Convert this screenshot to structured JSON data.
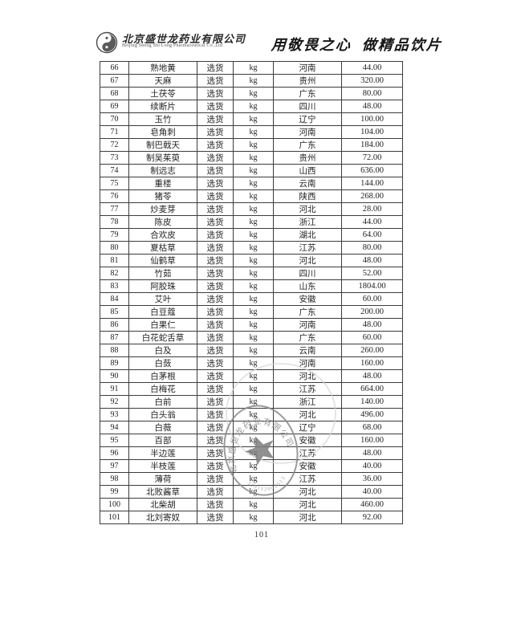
{
  "header": {
    "company_name_cn": "北京盛世龙药业有限公司",
    "company_name_en": "Beijing Sheng Shi Long Pharmaceutical Co.,Ltd",
    "slogan": "用敬畏之心  做精品饮片"
  },
  "footer": {
    "page_number": "101"
  },
  "stamp": {
    "company_text": "北京盛世龙药业有限公司",
    "number": "110112002513"
  },
  "table": {
    "rows": [
      {
        "no": "66",
        "name": "熟地黄",
        "grade": "选货",
        "unit": "kg",
        "origin": "河南",
        "price": "44.00"
      },
      {
        "no": "67",
        "name": "天麻",
        "grade": "选货",
        "unit": "kg",
        "origin": "贵州",
        "price": "320.00"
      },
      {
        "no": "68",
        "name": "土茯苓",
        "grade": "选货",
        "unit": "kg",
        "origin": "广东",
        "price": "80.00"
      },
      {
        "no": "69",
        "name": "续断片",
        "grade": "选货",
        "unit": "kg",
        "origin": "四川",
        "price": "48.00"
      },
      {
        "no": "70",
        "name": "玉竹",
        "grade": "选货",
        "unit": "kg",
        "origin": "辽宁",
        "price": "100.00"
      },
      {
        "no": "71",
        "name": "皂角刺",
        "grade": "选货",
        "unit": "kg",
        "origin": "河南",
        "price": "104.00"
      },
      {
        "no": "72",
        "name": "制巴戟天",
        "grade": "选货",
        "unit": "kg",
        "origin": "广东",
        "price": "184.00"
      },
      {
        "no": "73",
        "name": "制吴茱萸",
        "grade": "选货",
        "unit": "kg",
        "origin": "贵州",
        "price": "72.00"
      },
      {
        "no": "74",
        "name": "制远志",
        "grade": "选货",
        "unit": "kg",
        "origin": "山西",
        "price": "636.00"
      },
      {
        "no": "75",
        "name": "重楼",
        "grade": "选货",
        "unit": "kg",
        "origin": "云南",
        "price": "144.00"
      },
      {
        "no": "76",
        "name": "猪苓",
        "grade": "选货",
        "unit": "kg",
        "origin": "陕西",
        "price": "268.00"
      },
      {
        "no": "77",
        "name": "炒麦芽",
        "grade": "选货",
        "unit": "kg",
        "origin": "河北",
        "price": "28.00"
      },
      {
        "no": "78",
        "name": "陈皮",
        "grade": "选货",
        "unit": "kg",
        "origin": "浙江",
        "price": "44.00"
      },
      {
        "no": "79",
        "name": "合欢皮",
        "grade": "选货",
        "unit": "kg",
        "origin": "湖北",
        "price": "64.00"
      },
      {
        "no": "80",
        "name": "夏枯草",
        "grade": "选货",
        "unit": "kg",
        "origin": "江苏",
        "price": "80.00"
      },
      {
        "no": "81",
        "name": "仙鹤草",
        "grade": "选货",
        "unit": "kg",
        "origin": "河北",
        "price": "48.00"
      },
      {
        "no": "82",
        "name": "竹茹",
        "grade": "选货",
        "unit": "kg",
        "origin": "四川",
        "price": "52.00"
      },
      {
        "no": "83",
        "name": "阿胶珠",
        "grade": "选货",
        "unit": "kg",
        "origin": "山东",
        "price": "1804.00"
      },
      {
        "no": "84",
        "name": "艾叶",
        "grade": "选货",
        "unit": "kg",
        "origin": "安徽",
        "price": "60.00"
      },
      {
        "no": "85",
        "name": "白豆蔻",
        "grade": "选货",
        "unit": "kg",
        "origin": "广东",
        "price": "200.00"
      },
      {
        "no": "86",
        "name": "白果仁",
        "grade": "选货",
        "unit": "kg",
        "origin": "河南",
        "price": "48.00"
      },
      {
        "no": "87",
        "name": "白花蛇舌草",
        "grade": "选货",
        "unit": "kg",
        "origin": "广东",
        "price": "60.00"
      },
      {
        "no": "88",
        "name": "白及",
        "grade": "选货",
        "unit": "kg",
        "origin": "云南",
        "price": "260.00"
      },
      {
        "no": "89",
        "name": "白蔹",
        "grade": "选货",
        "unit": "kg",
        "origin": "河南",
        "price": "160.00"
      },
      {
        "no": "90",
        "name": "白茅根",
        "grade": "选货",
        "unit": "kg",
        "origin": "河北",
        "price": "48.00"
      },
      {
        "no": "91",
        "name": "白梅花",
        "grade": "选货",
        "unit": "kg",
        "origin": "江苏",
        "price": "664.00"
      },
      {
        "no": "92",
        "name": "白前",
        "grade": "选货",
        "unit": "kg",
        "origin": "浙江",
        "price": "140.00"
      },
      {
        "no": "93",
        "name": "白头翁",
        "grade": "选货",
        "unit": "kg",
        "origin": "河北",
        "price": "496.00"
      },
      {
        "no": "94",
        "name": "白薇",
        "grade": "选货",
        "unit": "kg",
        "origin": "辽宁",
        "price": "68.00"
      },
      {
        "no": "95",
        "name": "百部",
        "grade": "选货",
        "unit": "kg",
        "origin": "安徽",
        "price": "160.00"
      },
      {
        "no": "96",
        "name": "半边莲",
        "grade": "选货",
        "unit": "kg",
        "origin": "江苏",
        "price": "48.00"
      },
      {
        "no": "97",
        "name": "半枝莲",
        "grade": "选货",
        "unit": "kg",
        "origin": "安徽",
        "price": "40.00"
      },
      {
        "no": "98",
        "name": "薄荷",
        "grade": "选货",
        "unit": "kg",
        "origin": "江苏",
        "price": "36.00"
      },
      {
        "no": "99",
        "name": "北败酱草",
        "grade": "选货",
        "unit": "kg",
        "origin": "河北",
        "price": "40.00"
      },
      {
        "no": "100",
        "name": "北柴胡",
        "grade": "选货",
        "unit": "kg",
        "origin": "河北",
        "price": "460.00"
      },
      {
        "no": "101",
        "name": "北刘寄奴",
        "grade": "选货",
        "unit": "kg",
        "origin": "河北",
        "price": "92.00"
      }
    ]
  }
}
